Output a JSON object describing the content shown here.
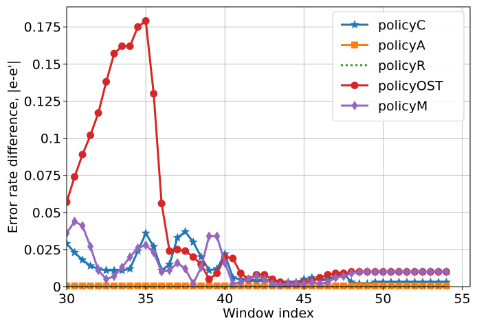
{
  "chart_data": {
    "type": "line",
    "title": "",
    "xlabel": "Window index",
    "ylabel": "Error rate difference, |e-e'|",
    "xlim": [
      30,
      55.5
    ],
    "ylim": [
      0,
      0.1885
    ],
    "xticks": [
      30,
      35,
      40,
      45,
      50,
      55
    ],
    "xtick_labels": [
      "30",
      "35",
      "40",
      "45",
      "50",
      "55"
    ],
    "yticks": [
      0,
      0.025,
      0.05,
      0.075,
      0.1,
      0.125,
      0.15,
      0.175
    ],
    "ytick_labels": [
      "0",
      "0.025",
      "0.05",
      "0.075",
      "0.1",
      "0.125",
      "0.15",
      "0.175"
    ],
    "grid": true,
    "legend_position": "top-right",
    "x": [
      30,
      30.5,
      31,
      31.5,
      32,
      32.5,
      33,
      33.5,
      34,
      34.5,
      35,
      35.5,
      36,
      36.5,
      37,
      37.5,
      38,
      38.5,
      39,
      39.5,
      40,
      40.5,
      41,
      41.5,
      42,
      42.5,
      43,
      43.5,
      44,
      44.5,
      45,
      45.5,
      46,
      46.5,
      47,
      47.5,
      48,
      48.5,
      49,
      49.5,
      50,
      50.5,
      51,
      51.5,
      52,
      52.5,
      53,
      53.5,
      54
    ],
    "series": [
      {
        "name": "policyC",
        "color": "#1f77b4",
        "marker": "star",
        "dash": "solid",
        "values": [
          0.029,
          0.023,
          0.018,
          0.014,
          0.012,
          0.011,
          0.011,
          0.011,
          0.012,
          0.024,
          0.036,
          0.027,
          0.011,
          0.015,
          0.033,
          0.037,
          0.03,
          0.02,
          0.011,
          0.012,
          0.022,
          0.006,
          0.005,
          0.004,
          0.004,
          0.004,
          0.004,
          0.003,
          0.003,
          0.003,
          0.005,
          0.006,
          0.004,
          0.005,
          0.007,
          0.009,
          0.003,
          0.002,
          0.002,
          0.003,
          0.003,
          0.003,
          0.003,
          0.003,
          0.003,
          0.003,
          0.003,
          0.003,
          0.003
        ]
      },
      {
        "name": "policyA",
        "color": "#ff7f0e",
        "marker": "square",
        "dash": "solid",
        "values": [
          0.0005,
          0.0005,
          0.0005,
          0.0005,
          0.0005,
          0.0005,
          0.0005,
          0.0005,
          0.0005,
          0.0005,
          0.0005,
          0.0005,
          0.0005,
          0.0005,
          0.0005,
          0.0005,
          0.0005,
          0.0005,
          0.0005,
          0.0005,
          0.0005,
          0.0005,
          0.0005,
          0.0005,
          0.0005,
          0.0005,
          0.0005,
          0.0005,
          0.0005,
          0.0005,
          0.0005,
          0.0005,
          0.0005,
          0.0005,
          0.0005,
          0.0005,
          0.0005,
          0.0005,
          0.0005,
          0.0005,
          0.0005,
          0.0005,
          0.0005,
          0.0005,
          0.0005,
          0.0005,
          0.0005,
          0.0005,
          0.0005
        ]
      },
      {
        "name": "policyR",
        "color": "#2ca02c",
        "marker": "none",
        "dash": "dotted",
        "values": [
          0,
          0,
          0,
          0,
          0,
          0,
          0,
          0,
          0,
          0,
          0,
          0,
          0,
          0,
          0,
          0,
          0,
          0,
          0,
          0,
          0,
          0,
          0,
          0,
          0,
          0,
          0,
          0,
          0,
          0,
          0,
          0,
          0,
          0,
          0,
          0,
          0,
          0,
          0,
          0,
          0,
          0,
          0,
          0,
          0,
          0,
          0,
          0,
          0
        ]
      },
      {
        "name": "policyOST",
        "color": "#d62728",
        "marker": "circle",
        "dash": "solid",
        "values": [
          0.057,
          0.074,
          0.089,
          0.102,
          0.117,
          0.138,
          0.157,
          0.162,
          0.162,
          0.175,
          0.179,
          0.13,
          0.056,
          0.024,
          0.025,
          0.024,
          0.02,
          0.015,
          0.005,
          0.009,
          0.02,
          0.019,
          0.009,
          0.005,
          0.008,
          0.008,
          0.005,
          0.003,
          0.002,
          0.002,
          0.003,
          0.004,
          0.006,
          0.008,
          0.009,
          0.009,
          0.01,
          0.01,
          0.01,
          0.01,
          0.01,
          0.01,
          0.01,
          0.01,
          0.01,
          0.01,
          0.01,
          0.01,
          0.01
        ]
      },
      {
        "name": "policyM",
        "color": "#9467bd",
        "marker": "thin_diamond",
        "dash": "solid",
        "values": [
          0.036,
          0.044,
          0.041,
          0.027,
          0.011,
          0.005,
          0.007,
          0.013,
          0.02,
          0.026,
          0.028,
          0.023,
          0.01,
          0.011,
          0.016,
          0.012,
          0.002,
          0.013,
          0.034,
          0.034,
          0.016,
          0.002,
          0.003,
          0.005,
          0.007,
          0.005,
          0.002,
          0.001,
          0.002,
          0.002,
          0.002,
          0.003,
          0.002,
          0.003,
          0.006,
          0.007,
          0.009,
          0.01,
          0.01,
          0.01,
          0.01,
          0.01,
          0.01,
          0.01,
          0.01,
          0.01,
          0.01,
          0.01,
          0.01
        ]
      }
    ]
  }
}
